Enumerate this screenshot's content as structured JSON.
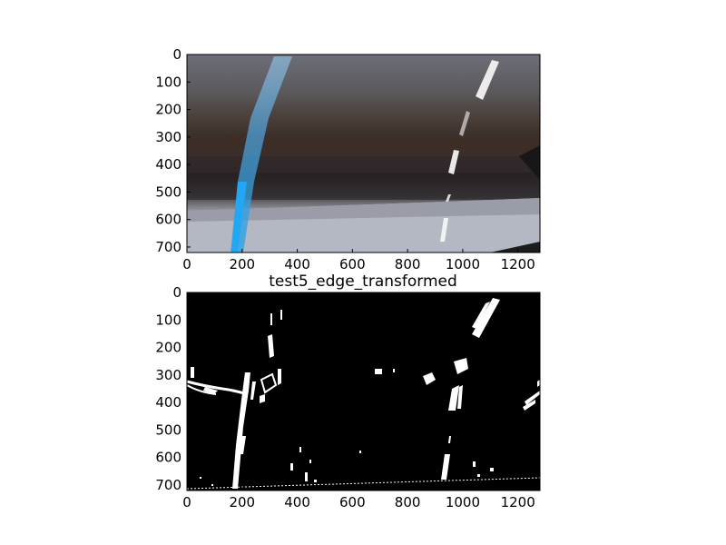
{
  "figure": {
    "panels": [
      {
        "name": "road-photo-panel",
        "title": "",
        "xticks": [
          "0",
          "200",
          "400",
          "600",
          "800",
          "1000",
          "1200"
        ],
        "yticks": [
          "0",
          "100",
          "200",
          "300",
          "400",
          "500",
          "600",
          "700"
        ],
        "xlim": [
          0,
          1280
        ],
        "ylim": [
          720,
          0
        ]
      },
      {
        "name": "edge-panel",
        "title": "test5_edge_transformed",
        "xticks": [
          "0",
          "200",
          "400",
          "600",
          "800",
          "1000",
          "1200"
        ],
        "yticks": [
          "0",
          "100",
          "200",
          "300",
          "400",
          "500",
          "600",
          "700"
        ],
        "xlim": [
          0,
          1280
        ],
        "ylim": [
          720,
          0
        ]
      }
    ]
  }
}
